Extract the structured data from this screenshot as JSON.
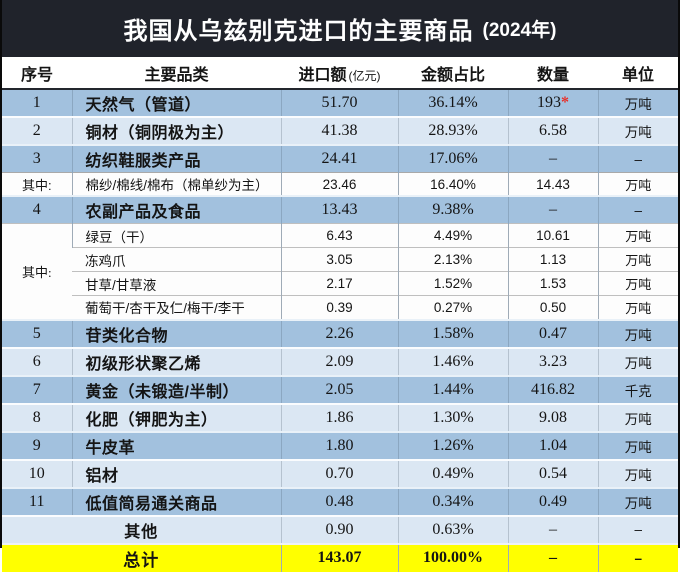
{
  "title": {
    "main": "我国从乌兹别克进口的主要商品",
    "year": "(2024年)"
  },
  "header": {
    "no": "序号",
    "category": "主要品类",
    "import_amount": "进口额",
    "import_amount_note": "(亿元)",
    "share": "金额占比",
    "quantity": "数量",
    "unit": "单位"
  },
  "group_label": "其中:",
  "rows": [
    {
      "no": "1",
      "cat": "天然气（管道）",
      "imp": "51.70",
      "share": "36.14%",
      "qty": "193",
      "star": "*",
      "unit": "万吨"
    },
    {
      "no": "2",
      "cat": "铜材（铜阴极为主）",
      "imp": "41.38",
      "share": "28.93%",
      "qty": "6.58",
      "unit": "万吨"
    },
    {
      "no": "3",
      "cat": "纺织鞋服类产品",
      "imp": "24.41",
      "share": "17.06%",
      "qty": "–",
      "unit": "–"
    },
    {
      "no": "其中:",
      "cat": "棉纱/棉线/棉布（棉单纱为主）",
      "imp": "23.46",
      "share": "16.40%",
      "qty": "14.43",
      "unit": "万吨"
    },
    {
      "no": "4",
      "cat": "农副产品及食品",
      "imp": "13.43",
      "share": "9.38%",
      "qty": "–",
      "unit": "–"
    },
    {
      "cat": "绿豆（干）",
      "imp": "6.43",
      "share": "4.49%",
      "qty": "10.61",
      "unit": "万吨"
    },
    {
      "cat": "冻鸡爪",
      "imp": "3.05",
      "share": "2.13%",
      "qty": "1.13",
      "unit": "万吨"
    },
    {
      "cat": "甘草/甘草液",
      "imp": "2.17",
      "share": "1.52%",
      "qty": "1.53",
      "unit": "万吨"
    },
    {
      "cat": "葡萄干/杏干及仁/梅干/李干",
      "imp": "0.39",
      "share": "0.27%",
      "qty": "0.50",
      "unit": "万吨"
    },
    {
      "no": "5",
      "cat": "苷类化合物",
      "imp": "2.26",
      "share": "1.58%",
      "qty": "0.47",
      "unit": "万吨"
    },
    {
      "no": "6",
      "cat": "初级形状聚乙烯",
      "imp": "2.09",
      "share": "1.46%",
      "qty": "3.23",
      "unit": "万吨"
    },
    {
      "no": "7",
      "cat": "黄金（未锻造/半制）",
      "imp": "2.05",
      "share": "1.44%",
      "qty": "416.82",
      "unit": "千克"
    },
    {
      "no": "8",
      "cat": "化肥（钾肥为主）",
      "imp": "1.86",
      "share": "1.30%",
      "qty": "9.08",
      "unit": "万吨"
    },
    {
      "no": "9",
      "cat": "牛皮革",
      "imp": "1.80",
      "share": "1.26%",
      "qty": "1.04",
      "unit": "万吨"
    },
    {
      "no": "10",
      "cat": "铝材",
      "imp": "0.70",
      "share": "0.49%",
      "qty": "0.54",
      "unit": "万吨"
    },
    {
      "no": "11",
      "cat": "低值简易通关商品",
      "imp": "0.48",
      "share": "0.34%",
      "qty": "0.49",
      "unit": "万吨"
    },
    {
      "no": "",
      "cat": "其他",
      "imp": "0.90",
      "share": "0.63%",
      "qty": "–",
      "unit": "–"
    },
    {
      "cat": "总计",
      "imp": "143.07",
      "share": "100.00%",
      "qty": "–",
      "unit": "–"
    }
  ],
  "colors": {
    "title_bg": "#20232b",
    "row_blue": "#a2c1de",
    "row_light": "#dbe7f3",
    "row_white": "#fdfdfd",
    "total_yellow": "#ffff00",
    "asterisk_red": "#e8302a"
  },
  "chart_data": {
    "type": "table",
    "title": "我国从乌兹别克进口的主要商品 (2024年)",
    "columns": [
      "序号",
      "主要品类",
      "进口额(亿元)",
      "金额占比",
      "数量",
      "单位"
    ],
    "rows": [
      [
        "1",
        "天然气（管道）",
        "51.70",
        "36.14%",
        "193*",
        "万吨"
      ],
      [
        "2",
        "铜材（铜阴极为主）",
        "41.38",
        "28.93%",
        "6.58",
        "万吨"
      ],
      [
        "3",
        "纺织鞋服类产品",
        "24.41",
        "17.06%",
        "–",
        "–"
      ],
      [
        "其中:",
        "棉纱/棉线/棉布（棉单纱为主）",
        "23.46",
        "16.40%",
        "14.43",
        "万吨"
      ],
      [
        "4",
        "农副产品及食品",
        "13.43",
        "9.38%",
        "–",
        "–"
      ],
      [
        "其中:",
        "绿豆（干）",
        "6.43",
        "4.49%",
        "10.61",
        "万吨"
      ],
      [
        "其中:",
        "冻鸡爪",
        "3.05",
        "2.13%",
        "1.13",
        "万吨"
      ],
      [
        "其中:",
        "甘草/甘草液",
        "2.17",
        "1.52%",
        "1.53",
        "万吨"
      ],
      [
        "其中:",
        "葡萄干/杏干及仁/梅干/李干",
        "0.39",
        "0.27%",
        "0.50",
        "万吨"
      ],
      [
        "5",
        "苷类化合物",
        "2.26",
        "1.58%",
        "0.47",
        "万吨"
      ],
      [
        "6",
        "初级形状聚乙烯",
        "2.09",
        "1.46%",
        "3.23",
        "万吨"
      ],
      [
        "7",
        "黄金（未锻造/半制）",
        "2.05",
        "1.44%",
        "416.82",
        "千克"
      ],
      [
        "8",
        "化肥（钾肥为主）",
        "1.86",
        "1.30%",
        "9.08",
        "万吨"
      ],
      [
        "9",
        "牛皮革",
        "1.80",
        "1.26%",
        "1.04",
        "万吨"
      ],
      [
        "10",
        "铝材",
        "0.70",
        "0.49%",
        "0.54",
        "万吨"
      ],
      [
        "11",
        "低值简易通关商品",
        "0.48",
        "0.34%",
        "0.49",
        "万吨"
      ],
      [
        "",
        "其他",
        "0.90",
        "0.63%",
        "–",
        "–"
      ],
      [
        "",
        "总计",
        "143.07",
        "100.00%",
        "–",
        "–"
      ]
    ]
  }
}
